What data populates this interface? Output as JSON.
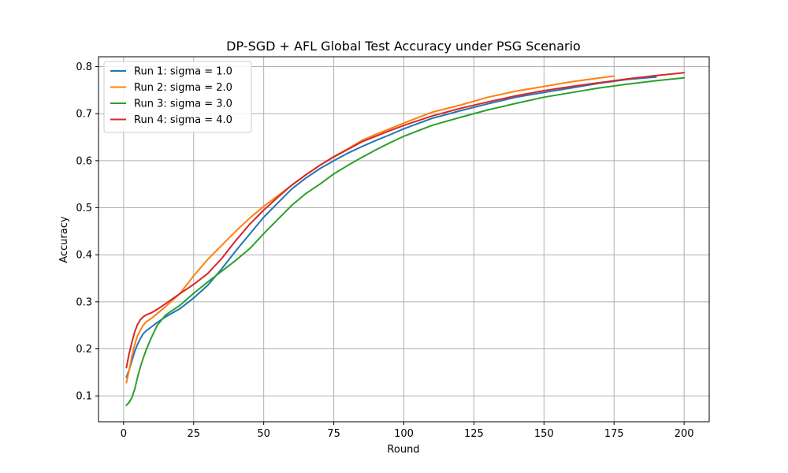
{
  "chart_data": {
    "type": "line",
    "title": "DP-SGD + AFL Global Test Accuracy under PSG Scenario",
    "xlabel": "Round",
    "ylabel": "Accuracy",
    "xlim": [
      -8.95,
      208.95
    ],
    "ylim": [
      0.045,
      0.821
    ],
    "xticks": [
      0,
      25,
      50,
      75,
      100,
      125,
      150,
      175,
      200
    ],
    "yticks": [
      0.1,
      0.2,
      0.3,
      0.4,
      0.5,
      0.6,
      0.7,
      0.8
    ],
    "grid": true,
    "legend_position": "upper-left",
    "series": [
      {
        "name": "Run 1: sigma = 1.0",
        "color": "#1f77b4",
        "x": [
          1,
          2,
          3,
          4,
          5,
          6,
          7,
          8,
          10,
          12,
          15,
          20,
          25,
          30,
          35,
          40,
          45,
          50,
          55,
          60,
          65,
          70,
          75,
          80,
          85,
          90,
          95,
          100,
          110,
          120,
          130,
          140,
          150,
          160,
          170,
          180,
          190
        ],
        "y": [
          0.14,
          0.155,
          0.175,
          0.195,
          0.21,
          0.222,
          0.232,
          0.238,
          0.247,
          0.256,
          0.268,
          0.285,
          0.308,
          0.335,
          0.37,
          0.408,
          0.444,
          0.48,
          0.51,
          0.54,
          0.563,
          0.583,
          0.6,
          0.616,
          0.63,
          0.643,
          0.655,
          0.668,
          0.69,
          0.706,
          0.721,
          0.735,
          0.745,
          0.755,
          0.765,
          0.773,
          0.778
        ]
      },
      {
        "name": "Run 2: sigma = 2.0",
        "color": "#ff7f0e",
        "x": [
          1,
          2,
          3,
          4,
          5,
          6,
          7,
          8,
          10,
          12,
          15,
          20,
          25,
          30,
          35,
          40,
          45,
          50,
          55,
          60,
          65,
          70,
          75,
          80,
          85,
          90,
          95,
          100,
          110,
          120,
          130,
          140,
          150,
          160,
          170,
          175
        ],
        "y": [
          0.128,
          0.155,
          0.185,
          0.21,
          0.228,
          0.24,
          0.25,
          0.257,
          0.265,
          0.275,
          0.29,
          0.317,
          0.355,
          0.39,
          0.42,
          0.45,
          0.478,
          0.503,
          0.525,
          0.548,
          0.57,
          0.59,
          0.609,
          0.625,
          0.643,
          0.656,
          0.668,
          0.68,
          0.703,
          0.718,
          0.735,
          0.748,
          0.758,
          0.768,
          0.776,
          0.78
        ]
      },
      {
        "name": "Run 3: sigma = 3.0",
        "color": "#2ca02c",
        "x": [
          1,
          2,
          3,
          4,
          5,
          6,
          7,
          8,
          10,
          12,
          15,
          20,
          25,
          30,
          35,
          40,
          45,
          50,
          55,
          60,
          65,
          70,
          75,
          80,
          85,
          90,
          95,
          100,
          110,
          120,
          130,
          140,
          150,
          160,
          170,
          180,
          190,
          200
        ],
        "y": [
          0.08,
          0.086,
          0.097,
          0.115,
          0.14,
          0.162,
          0.18,
          0.197,
          0.225,
          0.25,
          0.272,
          0.292,
          0.318,
          0.342,
          0.365,
          0.388,
          0.413,
          0.445,
          0.475,
          0.505,
          0.53,
          0.55,
          0.572,
          0.59,
          0.607,
          0.623,
          0.638,
          0.652,
          0.675,
          0.692,
          0.708,
          0.722,
          0.735,
          0.745,
          0.755,
          0.763,
          0.77,
          0.776
        ]
      },
      {
        "name": "Run 4: sigma = 4.0",
        "color": "#d62728",
        "x": [
          1,
          2,
          3,
          4,
          5,
          6,
          7,
          8,
          10,
          12,
          15,
          20,
          25,
          30,
          35,
          40,
          45,
          50,
          55,
          60,
          65,
          70,
          75,
          80,
          85,
          90,
          95,
          100,
          110,
          120,
          130,
          140,
          150,
          160,
          170,
          180,
          190,
          200
        ],
        "y": [
          0.16,
          0.19,
          0.215,
          0.237,
          0.252,
          0.262,
          0.268,
          0.272,
          0.277,
          0.284,
          0.296,
          0.317,
          0.337,
          0.36,
          0.392,
          0.43,
          0.465,
          0.495,
          0.522,
          0.548,
          0.57,
          0.59,
          0.608,
          0.624,
          0.64,
          0.652,
          0.664,
          0.675,
          0.695,
          0.711,
          0.725,
          0.738,
          0.749,
          0.758,
          0.766,
          0.774,
          0.781,
          0.787
        ]
      }
    ]
  }
}
